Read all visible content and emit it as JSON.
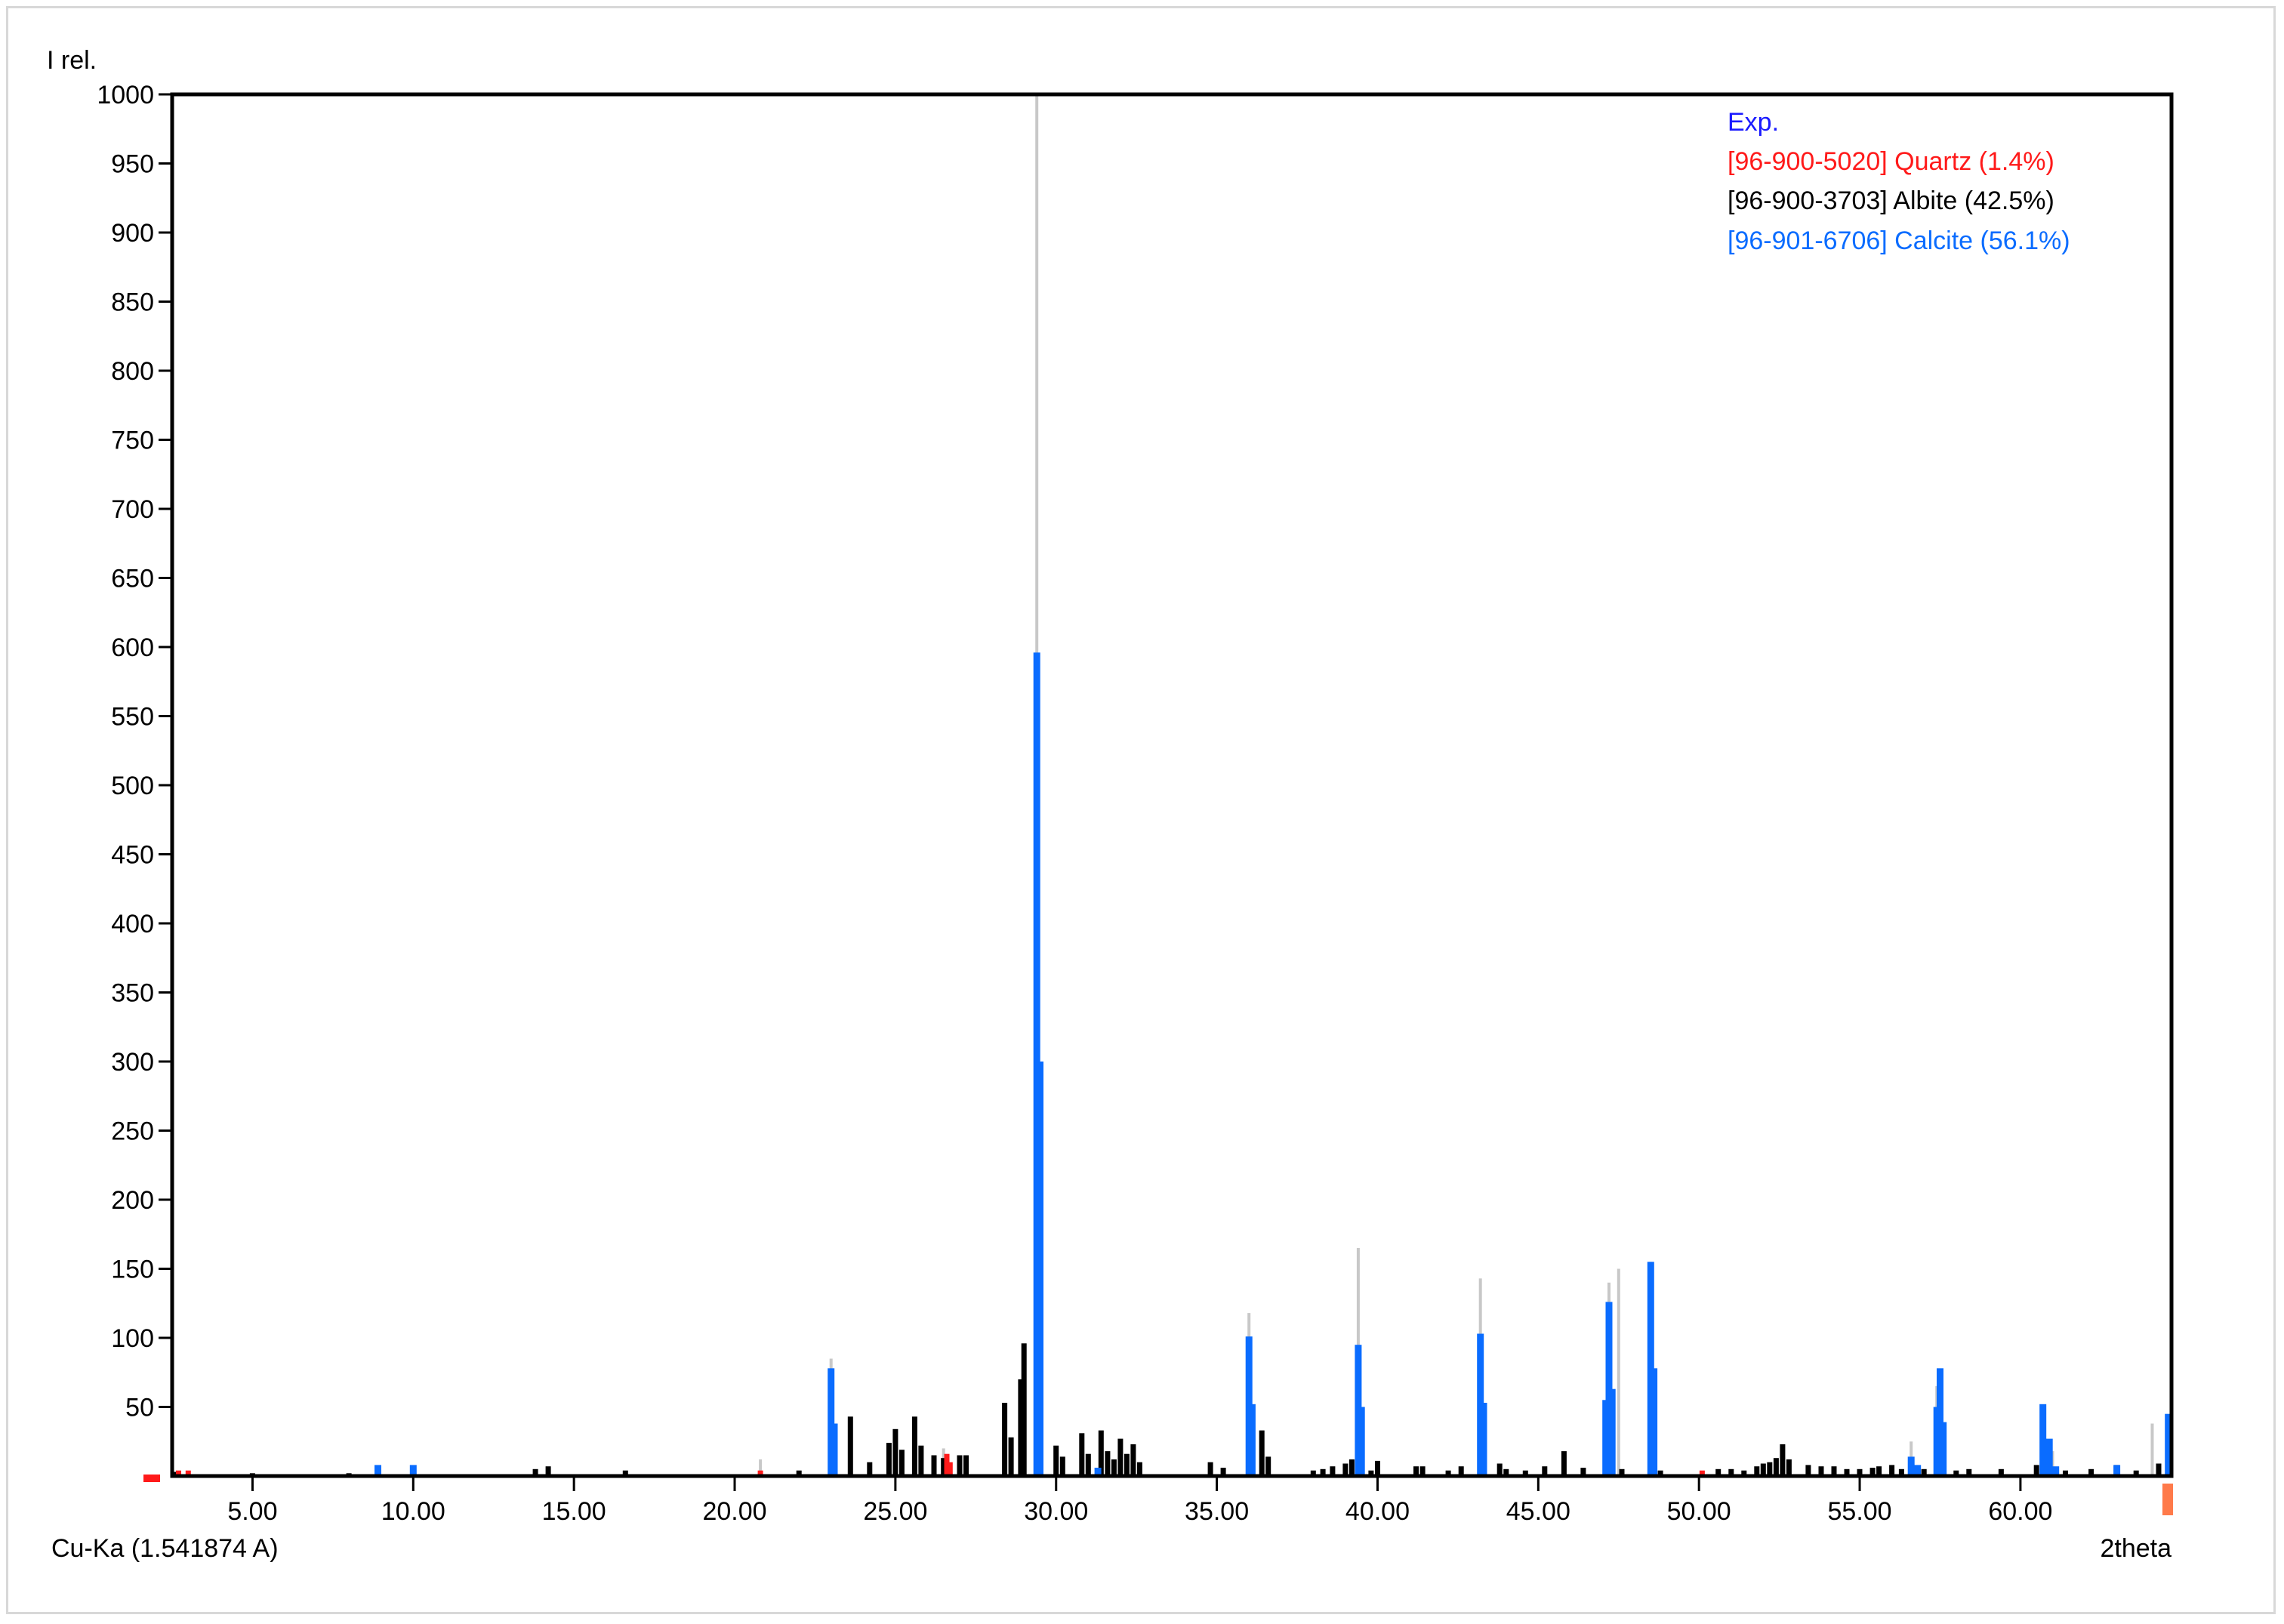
{
  "colors": {
    "exp": "#c8c8c8",
    "quartz": "#ff1a1a",
    "albite": "#000000",
    "calcite": "#0a6cff",
    "exp_legend": "#1a1aff",
    "marker": "#1a1aff",
    "end_marker": "#ff7a4a"
  },
  "chart_data": {
    "type": "bar",
    "ylabel": "I rel.",
    "xlabel": "2theta",
    "radiation_label": "Cu-Ka (1.541874 A)",
    "xlim": [
      2.5,
      64.7
    ],
    "ylim": [
      0,
      1000
    ],
    "x_ticks": [
      5,
      10,
      15,
      20,
      25,
      30,
      35,
      40,
      45,
      50,
      55,
      60
    ],
    "x_tick_labels": [
      "5.00",
      "10.00",
      "15.00",
      "20.00",
      "25.00",
      "30.00",
      "35.00",
      "40.00",
      "45.00",
      "50.00",
      "55.00",
      "60.00"
    ],
    "y_ticks": [
      50,
      100,
      150,
      200,
      250,
      300,
      350,
      400,
      450,
      500,
      550,
      600,
      650,
      700,
      750,
      800,
      850,
      900,
      950,
      1000
    ],
    "legend": {
      "position": "top-right",
      "entries": [
        {
          "key": "exp",
          "label": "Exp."
        },
        {
          "key": "quartz",
          "label": "[96-900-5020] Quartz (1.4%)"
        },
        {
          "key": "albite",
          "label": "[96-900-3703] Albite (42.5%)"
        },
        {
          "key": "calcite",
          "label": "[96-901-6706] Calcite (56.1%)"
        }
      ]
    },
    "series": [
      {
        "key": "exp",
        "points": [
          [
            20.8,
            12
          ],
          [
            23.0,
            85
          ],
          [
            26.5,
            20
          ],
          [
            29.4,
            1000
          ],
          [
            36.0,
            118
          ],
          [
            39.4,
            165
          ],
          [
            43.2,
            143
          ],
          [
            47.2,
            140
          ],
          [
            47.5,
            150
          ],
          [
            48.5,
            155
          ],
          [
            56.6,
            25
          ],
          [
            57.4,
            65
          ],
          [
            60.7,
            50
          ],
          [
            61.0,
            18
          ],
          [
            64.1,
            38
          ]
        ]
      },
      {
        "key": "albite",
        "points": [
          [
            2.6,
            3
          ],
          [
            5.0,
            2
          ],
          [
            8.0,
            2
          ],
          [
            13.8,
            5
          ],
          [
            14.2,
            7
          ],
          [
            16.6,
            4
          ],
          [
            22.0,
            4
          ],
          [
            23.6,
            43
          ],
          [
            24.2,
            10
          ],
          [
            24.8,
            24
          ],
          [
            25.0,
            34
          ],
          [
            25.2,
            19
          ],
          [
            25.6,
            43
          ],
          [
            25.8,
            22
          ],
          [
            26.2,
            15
          ],
          [
            26.5,
            13
          ],
          [
            27.0,
            15
          ],
          [
            27.2,
            15
          ],
          [
            28.4,
            53
          ],
          [
            28.6,
            28
          ],
          [
            28.9,
            70
          ],
          [
            29.0,
            96
          ],
          [
            30.0,
            22
          ],
          [
            30.2,
            14
          ],
          [
            30.8,
            31
          ],
          [
            31.0,
            16
          ],
          [
            31.4,
            33
          ],
          [
            31.6,
            18
          ],
          [
            31.8,
            12
          ],
          [
            32.0,
            27
          ],
          [
            32.2,
            16
          ],
          [
            32.4,
            23
          ],
          [
            32.6,
            10
          ],
          [
            34.8,
            10
          ],
          [
            35.2,
            6
          ],
          [
            36.4,
            33
          ],
          [
            36.6,
            14
          ],
          [
            38.0,
            4
          ],
          [
            38.3,
            5
          ],
          [
            38.6,
            7
          ],
          [
            39.0,
            9
          ],
          [
            39.2,
            12
          ],
          [
            39.8,
            4
          ],
          [
            40.0,
            11
          ],
          [
            41.2,
            7
          ],
          [
            41.4,
            7
          ],
          [
            42.2,
            4
          ],
          [
            42.6,
            7
          ],
          [
            43.8,
            9
          ],
          [
            44.0,
            5
          ],
          [
            44.6,
            4
          ],
          [
            45.2,
            7
          ],
          [
            45.8,
            18
          ],
          [
            46.4,
            6
          ],
          [
            47.6,
            5
          ],
          [
            48.8,
            4
          ],
          [
            50.6,
            5
          ],
          [
            51.0,
            5
          ],
          [
            51.4,
            4
          ],
          [
            51.8,
            7
          ],
          [
            52.0,
            9
          ],
          [
            52.2,
            10
          ],
          [
            52.4,
            13
          ],
          [
            52.6,
            23
          ],
          [
            52.8,
            12
          ],
          [
            53.4,
            8
          ],
          [
            53.8,
            7
          ],
          [
            54.2,
            7
          ],
          [
            54.6,
            5
          ],
          [
            55.0,
            5
          ],
          [
            55.4,
            6
          ],
          [
            55.6,
            7
          ],
          [
            56.0,
            8
          ],
          [
            56.3,
            5
          ],
          [
            57.0,
            5
          ],
          [
            58.0,
            4
          ],
          [
            58.4,
            5
          ],
          [
            59.4,
            5
          ],
          [
            60.5,
            8
          ],
          [
            61.4,
            4
          ],
          [
            62.2,
            5
          ],
          [
            63.0,
            8
          ],
          [
            63.6,
            4
          ],
          [
            64.3,
            9
          ]
        ]
      },
      {
        "key": "calcite",
        "points": [
          [
            8.9,
            8
          ],
          [
            10.0,
            8
          ],
          [
            23.0,
            78
          ],
          [
            23.1,
            38
          ],
          [
            31.3,
            6
          ],
          [
            29.4,
            596
          ],
          [
            29.5,
            300
          ],
          [
            36.0,
            101
          ],
          [
            36.1,
            52
          ],
          [
            39.4,
            95
          ],
          [
            39.5,
            50
          ],
          [
            43.2,
            103
          ],
          [
            43.3,
            53
          ],
          [
            47.1,
            55
          ],
          [
            47.2,
            126
          ],
          [
            47.3,
            63
          ],
          [
            48.5,
            155
          ],
          [
            48.6,
            78
          ],
          [
            56.6,
            14
          ],
          [
            56.8,
            8
          ],
          [
            57.4,
            50
          ],
          [
            57.5,
            78
          ],
          [
            57.6,
            39
          ],
          [
            60.7,
            52
          ],
          [
            60.9,
            27
          ],
          [
            61.1,
            7
          ],
          [
            63.0,
            8
          ],
          [
            64.6,
            45
          ]
        ]
      },
      {
        "key": "quartz",
        "points": [
          [
            2.7,
            4
          ],
          [
            3.0,
            4
          ],
          [
            20.8,
            4
          ],
          [
            26.6,
            16
          ],
          [
            26.7,
            10
          ],
          [
            50.1,
            4
          ]
        ]
      }
    ]
  }
}
